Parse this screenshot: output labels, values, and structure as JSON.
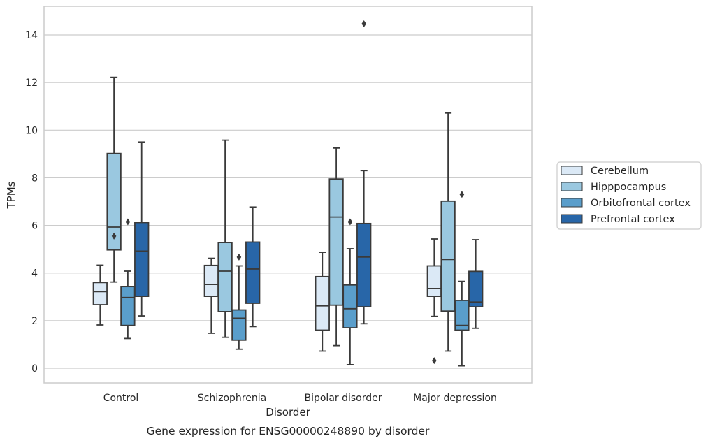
{
  "chart_data": {
    "type": "box",
    "title": "Gene expression for ENSG00000248890 by disorder",
    "xlabel": "Disorder",
    "ylabel": "TPMs",
    "ylim": [
      -0.6,
      15.2
    ],
    "yticks": [
      0,
      2,
      4,
      6,
      8,
      10,
      12,
      14
    ],
    "ytick_labels": [
      "0",
      "2",
      "4",
      "6",
      "8",
      "10",
      "12",
      "14"
    ],
    "grid": "horizontal",
    "legend_position": "right",
    "categories": [
      "Control",
      "Schizophrenia",
      "Bipolar disorder",
      "Major depression"
    ],
    "series": [
      {
        "name": "Cerebellum",
        "color": "#dbe9f6",
        "boxes": [
          {
            "whislo": 1.82,
            "q1": 2.67,
            "med": 3.22,
            "q3": 3.6,
            "whishi": 4.33,
            "fliers": []
          },
          {
            "whislo": 1.47,
            "q1": 3.02,
            "med": 3.52,
            "q3": 4.32,
            "whishi": 4.62,
            "fliers": []
          },
          {
            "whislo": 0.72,
            "q1": 1.6,
            "med": 2.62,
            "q3": 3.85,
            "whishi": 4.87,
            "fliers": []
          },
          {
            "whislo": 2.18,
            "q1": 3.02,
            "med": 3.35,
            "q3": 4.3,
            "whishi": 5.43,
            "fliers": [
              0.32
            ]
          }
        ]
      },
      {
        "name": "Hipppocampus",
        "color": "#9ac8e0",
        "boxes": [
          {
            "whislo": 3.62,
            "q1": 4.97,
            "med": 5.93,
            "q3": 9.02,
            "whishi": 12.22,
            "fliers": [
              5.55
            ]
          },
          {
            "whislo": 1.3,
            "q1": 2.38,
            "med": 4.08,
            "q3": 5.28,
            "whishi": 9.58,
            "fliers": []
          },
          {
            "whislo": 0.95,
            "q1": 2.65,
            "med": 6.35,
            "q3": 7.95,
            "whishi": 9.25,
            "fliers": []
          },
          {
            "whislo": 0.72,
            "q1": 2.4,
            "med": 4.57,
            "q3": 7.02,
            "whishi": 10.72,
            "fliers": []
          }
        ]
      },
      {
        "name": "Orbitofrontal cortex",
        "color": "#5a9ecb",
        "boxes": [
          {
            "whislo": 1.25,
            "q1": 1.8,
            "med": 2.97,
            "q3": 3.43,
            "whishi": 4.08,
            "fliers": [
              6.15
            ]
          },
          {
            "whislo": 0.8,
            "q1": 1.18,
            "med": 2.1,
            "q3": 2.45,
            "whishi": 4.3,
            "fliers": [
              4.67
            ]
          },
          {
            "whislo": 0.15,
            "q1": 1.7,
            "med": 2.5,
            "q3": 3.5,
            "whishi": 5.02,
            "fliers": [
              6.15
            ]
          },
          {
            "whislo": 0.1,
            "q1": 1.6,
            "med": 1.8,
            "q3": 2.85,
            "whishi": 3.65,
            "fliers": [
              7.3
            ]
          }
        ]
      },
      {
        "name": "Prefrontal cortex",
        "color": "#2866a8",
        "boxes": [
          {
            "whislo": 2.2,
            "q1": 3.02,
            "med": 4.92,
            "q3": 6.12,
            "whishi": 9.5,
            "fliers": []
          },
          {
            "whislo": 1.75,
            "q1": 2.73,
            "med": 4.17,
            "q3": 5.3,
            "whishi": 6.77,
            "fliers": []
          },
          {
            "whislo": 1.87,
            "q1": 2.58,
            "med": 4.67,
            "q3": 6.08,
            "whishi": 8.3,
            "fliers": [
              14.47
            ]
          },
          {
            "whislo": 1.68,
            "q1": 2.58,
            "med": 2.78,
            "q3": 4.07,
            "whishi": 5.4,
            "fliers": []
          }
        ]
      }
    ]
  }
}
